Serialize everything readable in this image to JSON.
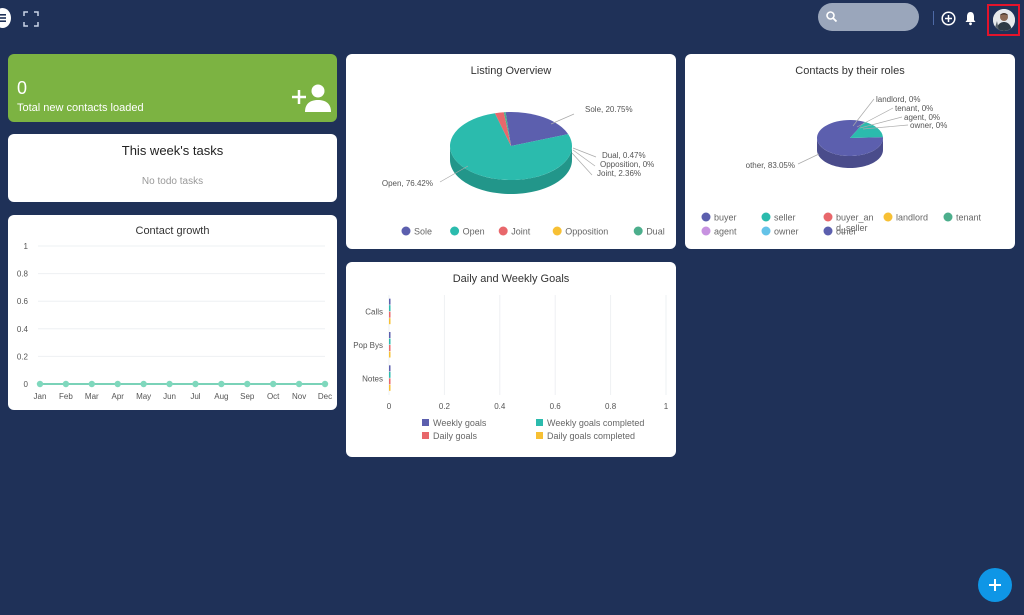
{
  "header": {
    "search_placeholder": "",
    "accent_color": "#1f3158"
  },
  "summary": {
    "count": "0",
    "label": "Total new contacts loaded"
  },
  "tasks": {
    "title": "This week's tasks",
    "empty_text": "No todo tasks"
  },
  "contact_growth": {
    "title": "Contact growth",
    "chart_data": {
      "type": "line",
      "title": "Contact growth",
      "categories": [
        "Jan",
        "Feb",
        "Mar",
        "Apr",
        "May",
        "Jun",
        "Jul",
        "Aug",
        "Sep",
        "Oct",
        "Nov",
        "Dec"
      ],
      "values": [
        0,
        0,
        0,
        0,
        0,
        0,
        0,
        0,
        0,
        0,
        0,
        0
      ],
      "y_ticks": [
        "0",
        "0.2",
        "0.4",
        "0.6",
        "0.8",
        "1"
      ],
      "ylim": [
        0,
        1
      ],
      "color": "#4fc3a1"
    }
  },
  "listing_overview": {
    "title": "Listing Overview",
    "chart_data": {
      "type": "pie",
      "title": "Listing Overview",
      "slices": [
        {
          "name": "Sole",
          "value": 20.75,
          "label": "Sole, 20.75%",
          "color": "#5c5fae"
        },
        {
          "name": "Open",
          "value": 76.42,
          "label": "Open, 76.42%",
          "color": "#2bbbad"
        },
        {
          "name": "Joint",
          "value": 2.36,
          "label": "Joint, 2.36%",
          "color": "#e8676b"
        },
        {
          "name": "Opposition",
          "value": 0,
          "label": "Opposition, 0%",
          "color": "#f7c034"
        },
        {
          "name": "Dual",
          "value": 0.47,
          "label": "Dual, 0.47%",
          "color": "#4cae8c"
        }
      ],
      "legend": [
        {
          "name": "Sole",
          "color": "#5c5fae"
        },
        {
          "name": "Open",
          "color": "#2bbbad"
        },
        {
          "name": "Joint",
          "color": "#e8676b"
        },
        {
          "name": "Opposition",
          "color": "#f7c034"
        },
        {
          "name": "Dual",
          "color": "#4cae8c"
        }
      ]
    }
  },
  "contacts_by_roles": {
    "title": "Contacts by their roles",
    "chart_data": {
      "type": "pie",
      "title": "Contacts by their roles",
      "slices": [
        {
          "name": "other",
          "value": 83.05,
          "label": "other, 83.05%",
          "color": "#5c5fae"
        },
        {
          "name": "seller",
          "value": 16.95,
          "label": "",
          "color": "#2bbbad"
        },
        {
          "name": "landlord",
          "value": 0,
          "label": "landlord, 0%",
          "color": "#f7c034"
        },
        {
          "name": "tenant",
          "value": 0,
          "label": "tenant, 0%",
          "color": "#4cae8c"
        },
        {
          "name": "agent",
          "value": 0,
          "label": "agent, 0%",
          "color": "#c792e0"
        },
        {
          "name": "owner",
          "value": 0,
          "label": "owner, 0%",
          "color": "#64c3e8"
        }
      ],
      "legend": [
        {
          "name": "buyer",
          "color": "#5c5fae"
        },
        {
          "name": "seller",
          "color": "#2bbbad"
        },
        {
          "name": "buyer_an",
          "name2": "d_seller",
          "color": "#e8676b"
        },
        {
          "name": "landlord",
          "color": "#f7c034"
        },
        {
          "name": "tenant",
          "color": "#4cae8c"
        },
        {
          "name": "agent",
          "color": "#c792e0"
        },
        {
          "name": "owner",
          "color": "#64c3e8"
        },
        {
          "name": "other",
          "color": "#5c5fae"
        }
      ]
    }
  },
  "daily_weekly_goals": {
    "title": "Daily and Weekly Goals",
    "chart_data": {
      "type": "bar",
      "title": "Daily and Weekly Goals",
      "categories": [
        "Calls",
        "Pop Bys",
        "Notes"
      ],
      "x_ticks": [
        "0",
        "0.2",
        "0.4",
        "0.6",
        "0.8",
        "1"
      ],
      "xlim": [
        0,
        1
      ],
      "series": [
        {
          "name": "Weekly goals",
          "values": [
            0,
            0,
            0
          ],
          "color": "#5c5fae"
        },
        {
          "name": "Weekly goals completed",
          "values": [
            0,
            0,
            0
          ],
          "color": "#2bbbad"
        },
        {
          "name": "Daily goals",
          "values": [
            0,
            0,
            0
          ],
          "color": "#e8676b"
        },
        {
          "name": "Daily goals completed",
          "values": [
            0,
            0,
            0
          ],
          "color": "#f7c034"
        }
      ]
    }
  }
}
